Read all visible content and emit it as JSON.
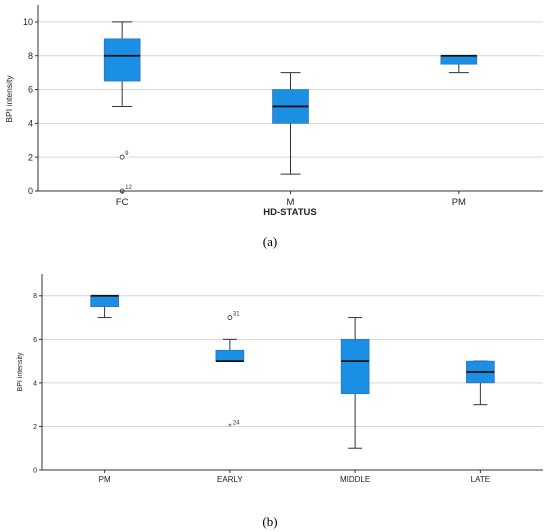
{
  "colors": {
    "box": "#1a8fe3",
    "box_stroke": "#2a6aa6",
    "grid": "#d6d6d6",
    "axis": "#333333"
  },
  "chart_data": [
    {
      "panel": "(a)",
      "type": "boxplot",
      "xlabel": "HD-STATUS",
      "ylabel": "BPI intensity",
      "ylim": [
        0,
        11
      ],
      "yticks": [
        0,
        2,
        4,
        6,
        8,
        10
      ],
      "grid": true,
      "categories": [
        "FC",
        "M",
        "PM"
      ],
      "boxes": [
        {
          "category": "FC",
          "min": 5,
          "q1": 6.5,
          "median": 8,
          "q3": 9,
          "max": 10,
          "outliers": [
            {
              "value": 2,
              "label": "9",
              "marker": "circle"
            },
            {
              "value": 0,
              "label": "12",
              "marker": "circle"
            }
          ]
        },
        {
          "category": "M",
          "min": 1,
          "q1": 4,
          "median": 5,
          "q3": 6,
          "max": 7,
          "outliers": []
        },
        {
          "category": "PM",
          "min": 7,
          "q1": 7.5,
          "median": 8,
          "q3": 8,
          "max": 8,
          "outliers": []
        }
      ]
    },
    {
      "panel": "(b)",
      "type": "boxplot",
      "xlabel": "",
      "ylabel": "BPI intensity",
      "ylim": [
        0,
        9
      ],
      "yticks": [
        0,
        2,
        4,
        6,
        8
      ],
      "grid": true,
      "categories": [
        "PM",
        "EARLY",
        "MIDDLE",
        "LATE"
      ],
      "boxes": [
        {
          "category": "PM",
          "min": 7,
          "q1": 7.5,
          "median": 8,
          "q3": 8,
          "max": 8,
          "outliers": []
        },
        {
          "category": "EARLY",
          "min": 5,
          "q1": 5,
          "median": 5,
          "q3": 5.5,
          "max": 6,
          "outliers": [
            {
              "value": 7,
              "label": "31",
              "marker": "circle"
            },
            {
              "value": 2,
              "label": "24",
              "marker": "star"
            }
          ]
        },
        {
          "category": "MIDDLE",
          "min": 1,
          "q1": 3.5,
          "median": 5,
          "q3": 6,
          "max": 7,
          "outliers": []
        },
        {
          "category": "LATE",
          "min": 3,
          "q1": 4,
          "median": 4.5,
          "q3": 5,
          "max": 5,
          "outliers": []
        }
      ]
    }
  ]
}
